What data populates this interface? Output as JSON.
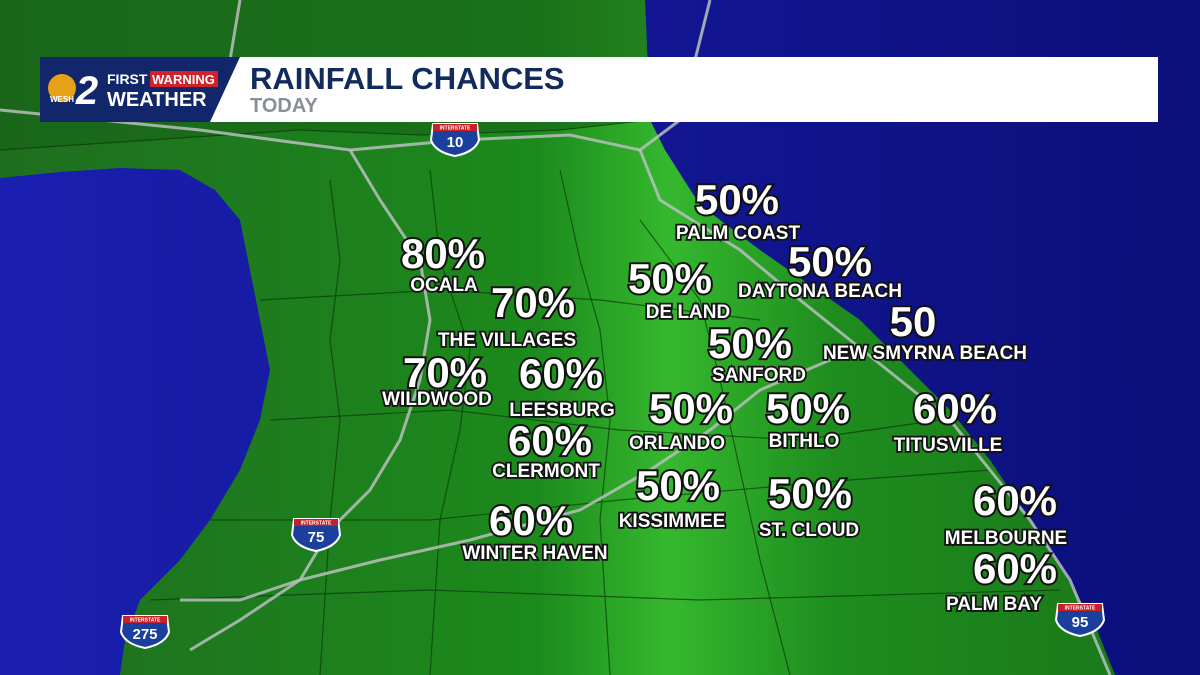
{
  "header": {
    "title": "RAINFALL CHANCES",
    "subtitle": "TODAY"
  },
  "logo": {
    "station": "WESH",
    "number": "2",
    "first": "FIRST",
    "warning": "WARNING",
    "weather": "WEATHER"
  },
  "interstates": {
    "label": "INTERSTATE",
    "routes": [
      "10",
      "75",
      "275",
      "95"
    ]
  },
  "cities": [
    {
      "chance": "50%",
      "name": "PALM COAST"
    },
    {
      "chance": "80%",
      "name": "OCALA"
    },
    {
      "chance": "50%",
      "name": "DE LAND"
    },
    {
      "chance": "50%",
      "name": "DAYTONA BEACH"
    },
    {
      "chance": "70%",
      "name": "THE VILLAGES"
    },
    {
      "chance": "50",
      "name": "NEW SMYRNA BEACH"
    },
    {
      "chance": "50%",
      "name": "SANFORD"
    },
    {
      "chance": "70%",
      "name": "WILDWOOD"
    },
    {
      "chance": "60%",
      "name": "LEESBURG"
    },
    {
      "chance": "50%",
      "name": "ORLANDO"
    },
    {
      "chance": "50%",
      "name": "BITHLO"
    },
    {
      "chance": "60%",
      "name": "TITUSVILLE"
    },
    {
      "chance": "60%",
      "name": "CLERMONT"
    },
    {
      "chance": "50%",
      "name": "KISSIMMEE"
    },
    {
      "chance": "50%",
      "name": "ST. CLOUD"
    },
    {
      "chance": "60%",
      "name": "MELBOURNE"
    },
    {
      "chance": "60%",
      "name": "WINTER HAVEN"
    },
    {
      "chance": "60%",
      "name": "PALM BAY"
    }
  ]
}
